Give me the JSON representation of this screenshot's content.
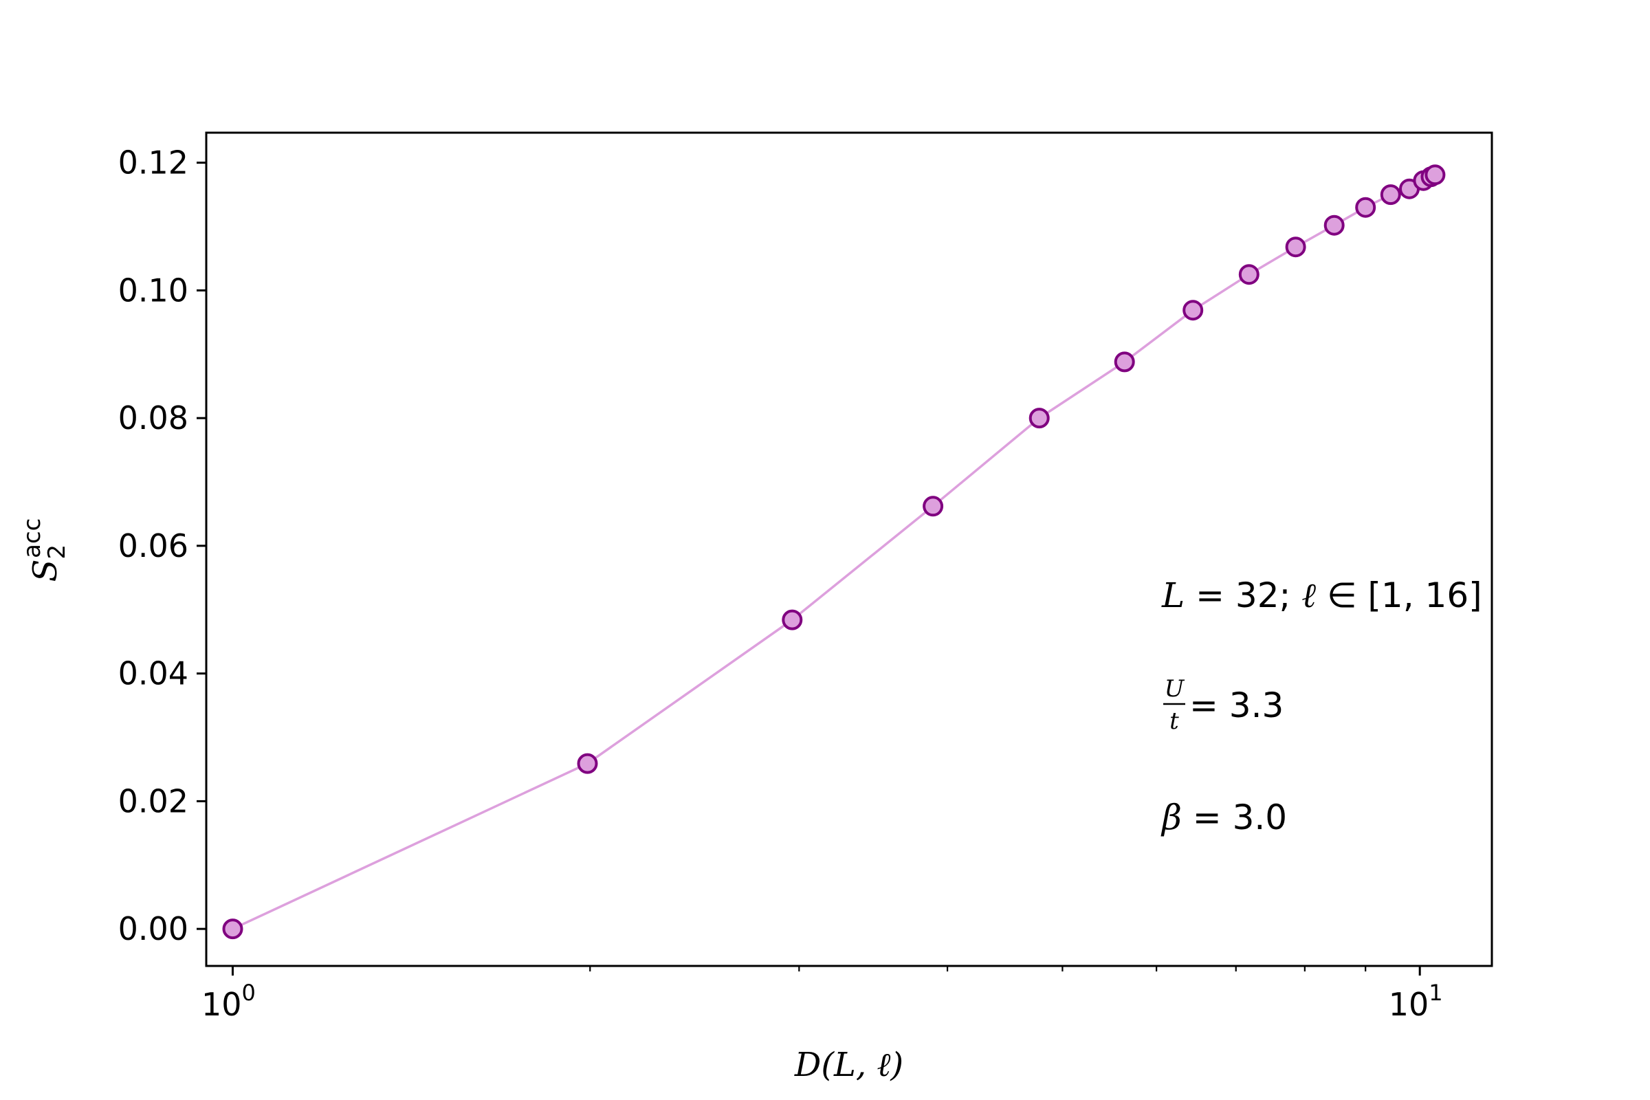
{
  "chart_data": {
    "type": "line",
    "xscale": "log",
    "xlim": [
      0.95,
      11.5
    ],
    "ylim": [
      -0.0058,
      0.1247
    ],
    "xlabel": "D(L, ℓ)",
    "ylabel": {
      "base": "S",
      "sub": "2",
      "sup": "acc"
    },
    "x_ticks": [
      {
        "value": 1,
        "base": "10",
        "exp": "0"
      },
      {
        "value": 10,
        "base": "10",
        "exp": "1"
      }
    ],
    "x_minor_ticks": [
      2,
      3,
      4,
      5,
      6,
      7,
      8,
      9
    ],
    "y_ticks": [
      {
        "value": 0.0,
        "label": "0.00"
      },
      {
        "value": 0.02,
        "label": "0.02"
      },
      {
        "value": 0.04,
        "label": "0.04"
      },
      {
        "value": 0.06,
        "label": "0.06"
      },
      {
        "value": 0.08,
        "label": "0.08"
      },
      {
        "value": 0.1,
        "label": "0.10"
      },
      {
        "value": 0.12,
        "label": "0.12"
      }
    ],
    "series": [
      {
        "x": [
          1.0,
          1.99,
          2.96,
          3.89,
          4.78,
          5.64,
          6.44,
          7.18,
          7.86,
          8.47,
          9.0,
          9.45,
          9.8,
          10.07,
          10.22,
          10.3
        ],
        "y": [
          0.0,
          0.0259,
          0.0484,
          0.0662,
          0.08,
          0.0888,
          0.0969,
          0.1025,
          0.1068,
          0.1102,
          0.113,
          0.115,
          0.1159,
          0.1172,
          0.1178,
          0.1181
        ],
        "line_color": "#dda0dd",
        "marker_face": "#dda0dd",
        "marker_edge": "#800080"
      }
    ],
    "annotations": [
      {
        "parts": [
          "L",
          " = 32; ",
          "ℓ",
          " ∈ [1, 16]"
        ]
      },
      {
        "fraction": {
          "num": "U",
          "den": "t"
        },
        "rest": " = 3.3"
      },
      {
        "parts": [
          "β",
          " = 3.0"
        ]
      }
    ],
    "grid": false,
    "legend": "none"
  }
}
